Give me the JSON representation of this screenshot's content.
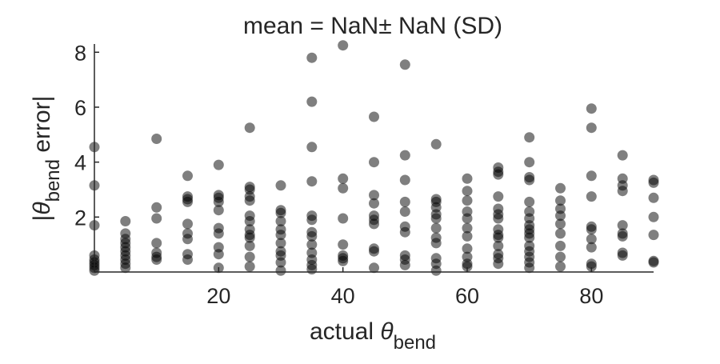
{
  "chart_data": {
    "type": "scatter",
    "title": "mean = NaN± NaN (SD)",
    "xlabel": {
      "prefix": "actual ",
      "symbol": "θ",
      "subscript": "bend"
    },
    "ylabel": {
      "open": "|",
      "symbol": "θ",
      "subscript": "bend",
      "suffix": " error|"
    },
    "xlim": [
      0,
      90
    ],
    "ylim": [
      0,
      8.3
    ],
    "xticks": [
      20,
      40,
      60,
      80
    ],
    "yticks": [
      2,
      4,
      6,
      8
    ],
    "grid": false,
    "marker_color": "#000000",
    "marker_opacity": 0.5,
    "axis_color": "#262626",
    "points": [
      [
        0,
        4.55
      ],
      [
        0,
        3.15
      ],
      [
        0,
        1.7
      ],
      [
        0,
        0.6
      ],
      [
        0,
        0.45
      ],
      [
        0,
        0.35
      ],
      [
        0,
        0.25
      ],
      [
        0,
        0.15
      ],
      [
        0,
        0.05
      ],
      [
        5,
        1.85
      ],
      [
        5,
        1.4
      ],
      [
        5,
        1.2
      ],
      [
        5,
        1.05
      ],
      [
        5,
        0.9
      ],
      [
        5,
        0.75
      ],
      [
        5,
        0.6
      ],
      [
        5,
        0.45
      ],
      [
        5,
        0.3
      ],
      [
        5,
        0.15
      ],
      [
        10,
        4.85
      ],
      [
        10,
        2.35
      ],
      [
        10,
        1.95
      ],
      [
        10,
        1.05
      ],
      [
        10,
        0.7
      ],
      [
        10,
        0.55
      ],
      [
        10,
        0.45
      ],
      [
        15,
        3.5
      ],
      [
        15,
        2.75
      ],
      [
        15,
        2.65
      ],
      [
        15,
        2.55
      ],
      [
        15,
        1.75
      ],
      [
        15,
        1.4
      ],
      [
        15,
        1.2
      ],
      [
        15,
        0.65
      ],
      [
        15,
        0.45
      ],
      [
        20,
        3.9
      ],
      [
        20,
        2.8
      ],
      [
        20,
        2.7
      ],
      [
        20,
        2.55
      ],
      [
        20,
        2.25
      ],
      [
        20,
        1.6
      ],
      [
        20,
        1.4
      ],
      [
        20,
        0.9
      ],
      [
        20,
        0.65
      ],
      [
        20,
        0.15
      ],
      [
        25,
        5.25
      ],
      [
        25,
        3.1
      ],
      [
        25,
        3.0
      ],
      [
        25,
        2.75
      ],
      [
        25,
        2.6
      ],
      [
        25,
        2.05
      ],
      [
        25,
        1.85
      ],
      [
        25,
        1.55
      ],
      [
        25,
        1.35
      ],
      [
        25,
        1.25
      ],
      [
        25,
        0.95
      ],
      [
        25,
        0.55
      ],
      [
        25,
        0.2
      ],
      [
        30,
        3.15
      ],
      [
        30,
        2.25
      ],
      [
        30,
        2.15
      ],
      [
        30,
        1.85
      ],
      [
        30,
        1.55
      ],
      [
        30,
        1.35
      ],
      [
        30,
        1.05
      ],
      [
        30,
        0.75
      ],
      [
        30,
        0.6
      ],
      [
        30,
        0.35
      ],
      [
        30,
        0.05
      ],
      [
        35,
        7.8
      ],
      [
        35,
        6.2
      ],
      [
        35,
        4.55
      ],
      [
        35,
        3.3
      ],
      [
        35,
        2.05
      ],
      [
        35,
        1.9
      ],
      [
        35,
        1.45
      ],
      [
        35,
        1.3
      ],
      [
        35,
        1.0
      ],
      [
        35,
        0.7
      ],
      [
        35,
        0.45
      ],
      [
        35,
        0.25
      ],
      [
        35,
        0.1
      ],
      [
        40,
        8.25
      ],
      [
        40,
        3.4
      ],
      [
        40,
        3.05
      ],
      [
        40,
        1.95
      ],
      [
        40,
        1.0
      ],
      [
        40,
        0.6
      ],
      [
        40,
        0.5
      ],
      [
        40,
        0.4
      ],
      [
        45,
        5.65
      ],
      [
        45,
        4.0
      ],
      [
        45,
        2.8
      ],
      [
        45,
        2.5
      ],
      [
        45,
        2.05
      ],
      [
        45,
        1.9
      ],
      [
        45,
        1.75
      ],
      [
        45,
        0.85
      ],
      [
        45,
        0.75
      ],
      [
        45,
        0.15
      ],
      [
        50,
        7.55
      ],
      [
        50,
        4.25
      ],
      [
        50,
        3.35
      ],
      [
        50,
        2.55
      ],
      [
        50,
        2.2
      ],
      [
        50,
        1.65
      ],
      [
        50,
        1.45
      ],
      [
        50,
        0.6
      ],
      [
        50,
        0.45
      ],
      [
        50,
        0.25
      ],
      [
        55,
        4.65
      ],
      [
        55,
        2.65
      ],
      [
        55,
        2.55
      ],
      [
        55,
        2.35
      ],
      [
        55,
        2.1
      ],
      [
        55,
        1.95
      ],
      [
        55,
        1.6
      ],
      [
        55,
        1.25
      ],
      [
        55,
        1.05
      ],
      [
        55,
        0.5
      ],
      [
        55,
        0.3
      ],
      [
        55,
        0.05
      ],
      [
        60,
        3.4
      ],
      [
        60,
        2.95
      ],
      [
        60,
        2.6
      ],
      [
        60,
        2.2
      ],
      [
        60,
        1.95
      ],
      [
        60,
        1.6
      ],
      [
        60,
        1.3
      ],
      [
        60,
        0.85
      ],
      [
        60,
        0.55
      ],
      [
        60,
        0.3
      ],
      [
        60,
        0.2
      ],
      [
        65,
        3.8
      ],
      [
        65,
        3.65
      ],
      [
        65,
        3.55
      ],
      [
        65,
        2.75
      ],
      [
        65,
        2.3
      ],
      [
        65,
        2.1
      ],
      [
        65,
        1.95
      ],
      [
        65,
        1.55
      ],
      [
        65,
        1.35
      ],
      [
        65,
        1.25
      ],
      [
        65,
        0.95
      ],
      [
        65,
        0.65
      ],
      [
        65,
        0.5
      ],
      [
        65,
        0.3
      ],
      [
        70,
        4.9
      ],
      [
        70,
        4.0
      ],
      [
        70,
        3.45
      ],
      [
        70,
        3.35
      ],
      [
        70,
        2.55
      ],
      [
        70,
        2.2
      ],
      [
        70,
        1.95
      ],
      [
        70,
        1.7
      ],
      [
        70,
        1.55
      ],
      [
        70,
        1.4
      ],
      [
        70,
        1.25
      ],
      [
        70,
        0.95
      ],
      [
        70,
        0.75
      ],
      [
        70,
        0.55
      ],
      [
        70,
        0.35
      ],
      [
        70,
        0.15
      ],
      [
        75,
        3.05
      ],
      [
        75,
        2.6
      ],
      [
        75,
        2.3
      ],
      [
        75,
        2.05
      ],
      [
        75,
        1.75
      ],
      [
        75,
        1.4
      ],
      [
        75,
        0.95
      ],
      [
        75,
        0.55
      ],
      [
        75,
        0.2
      ],
      [
        80,
        5.95
      ],
      [
        80,
        5.25
      ],
      [
        80,
        3.5
      ],
      [
        80,
        2.75
      ],
      [
        80,
        1.65
      ],
      [
        80,
        1.55
      ],
      [
        80,
        1.2
      ],
      [
        80,
        0.9
      ],
      [
        80,
        0.3
      ],
      [
        80,
        0.2
      ],
      [
        85,
        4.25
      ],
      [
        85,
        3.4
      ],
      [
        85,
        3.15
      ],
      [
        85,
        2.95
      ],
      [
        85,
        1.7
      ],
      [
        85,
        1.4
      ],
      [
        85,
        1.3
      ],
      [
        85,
        0.7
      ],
      [
        85,
        0.6
      ],
      [
        90,
        3.35
      ],
      [
        90,
        3.25
      ],
      [
        90,
        2.7
      ],
      [
        90,
        2.0
      ],
      [
        90,
        1.35
      ],
      [
        90,
        0.4
      ],
      [
        90,
        0.35
      ]
    ]
  }
}
